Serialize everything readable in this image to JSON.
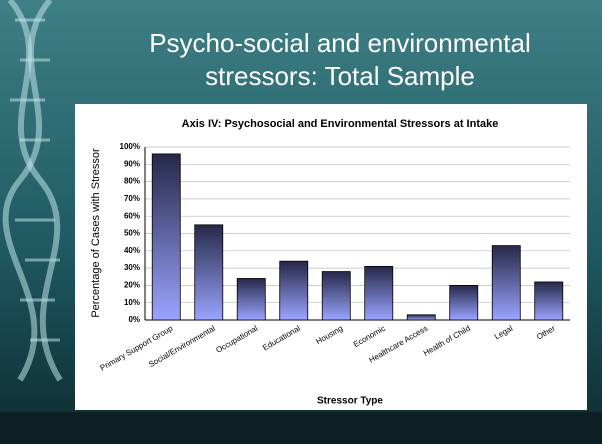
{
  "slide_title": [
    "Psycho-social and environmental",
    "stressors: Total Sample"
  ],
  "chart_data": {
    "type": "bar",
    "title": "Axis IV: Psychosocial and Environmental Stressors at Intake",
    "x_label": "Stressor Type",
    "y_label": "Percentage of Cases with Stressor",
    "categories": [
      "Primary Support Group",
      "Social/Environmental",
      "Occupational",
      "Educational",
      "Housing",
      "Economic",
      "Healthcare Access",
      "Health of Child",
      "Legal",
      "Other"
    ],
    "values": [
      96,
      55,
      24,
      34,
      28,
      31,
      3,
      20,
      43,
      22
    ],
    "color": "#9aa4ff",
    "ylim": [
      0,
      100
    ],
    "yticks": [
      {
        "value": 0,
        "label": "0%"
      },
      {
        "value": 10,
        "label": "10%"
      },
      {
        "value": 20,
        "label": "20%"
      },
      {
        "value": 30,
        "label": "30%"
      },
      {
        "value": 40,
        "label": "40%"
      },
      {
        "value": 50,
        "label": "50%"
      },
      {
        "value": 60,
        "label": "60%"
      },
      {
        "value": 70,
        "label": "70%"
      },
      {
        "value": 80,
        "label": "80%"
      },
      {
        "value": 90,
        "label": "90%"
      },
      {
        "value": 100,
        "label": "100%"
      }
    ],
    "grid": true
  }
}
